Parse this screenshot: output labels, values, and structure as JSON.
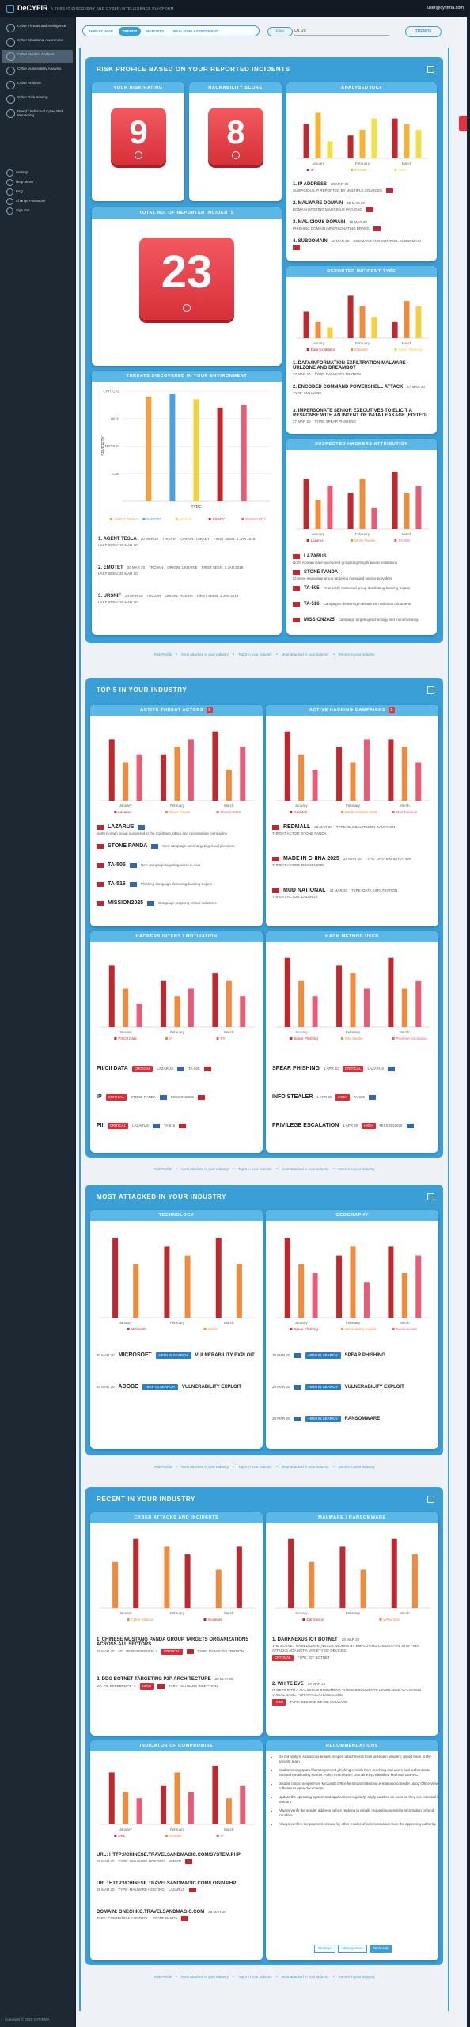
{
  "header": {
    "brand": "DeCYFIR",
    "tagline": "A THREAT DISCOVERY AND CYBER-INTELLIGENCE PLATFORM",
    "user": "user@cyfirma.com"
  },
  "sidebar": {
    "primary": [
      "Cyber Threats and Intelligence",
      "Cyber Situational Awareness",
      "Cyber Incident Analysis",
      "Cyber Vulnerability Analysis",
      "Cyber Analysis",
      "Cyber Risk Scoring",
      "Brand / Individual Cyber Risk Monitoring"
    ],
    "secondary": [
      "Settings",
      "Help Menu",
      "FAQ",
      "Change Password",
      "Sign Out"
    ]
  },
  "tabs": [
    "THREAT VIEW",
    "TRENDS",
    "REPORTS",
    "REAL-TIME ASSESSMENT"
  ],
  "toolbar": {
    "filter": "Filter",
    "period": "Q1 '20",
    "trends": "TRENDS"
  },
  "section_nav": [
    "Risk Profile",
    "Most attacked in your industry",
    "Top 5 in your industry",
    "Most attacked in your industry",
    "Recent in your industry"
  ],
  "risk": {
    "title": "RISK PROFILE BASED ON YOUR REPORTED INCIDENTS",
    "rating": {
      "label": "YOUR RISK RATING",
      "value": 9
    },
    "hackability": {
      "label": "HACKABILITY SCORE",
      "value": 8
    },
    "total": {
      "label": "TOTAL NO. OF REPORTED INCIDENTS",
      "value": 23
    },
    "iocs": {
      "title": "ANALYSED IOCs",
      "rows": [
        {
          "name": "1. IP ADDRESS",
          "date": "20 MAR 20",
          "detail": "SUSPICIOUS IP REPORTED BY MULTIPLE SOURCES"
        },
        {
          "name": "2. MALWARE DOMAIN",
          "date": "20 MAR 20",
          "detail": "DOMAIN HOSTING MALICIOUS PAYLOAD"
        },
        {
          "name": "3. MALICIOUS DOMAIN",
          "date": "18 MAR 20",
          "detail": "PHISHING DOMAIN IMPERSONATING BRAND"
        },
        {
          "name": "4. SUBDOMAIN",
          "date": "16 MAR 20",
          "detail": "COMMAND AND CONTROL SUBDOMAIN"
        }
      ]
    },
    "threats": {
      "title": "THREATS DISCOVERED IN YOUR ENVIRONMENT",
      "rows": [
        {
          "name": "1. AGENT TESLA",
          "date": "20 MAR 20",
          "kind": "TROJAN",
          "origin": "ORIGIN: TURKEY",
          "first": "FIRST SEEN: 1 JAN 2019",
          "last": "LAST SEEN: 20 MAR 20"
        },
        {
          "name": "2. EMOTET",
          "date": "20 MAR 20",
          "kind": "TROJAN",
          "origin": "ORIGIN: UKRAINE",
          "first": "FIRST SEEN: 1 JAN 2019",
          "last": "LAST SEEN: 20 MAR 20"
        },
        {
          "name": "3. URSNIF",
          "date": "20 MAR 20",
          "kind": "TROJAN",
          "origin": "ORIGIN: RUSSIA",
          "first": "FIRST SEEN: 1 JAN 2019",
          "last": "LAST SEEN: 20 MAR 20"
        }
      ]
    },
    "incident_types": {
      "title": "REPORTED INCIDENT TYPE",
      "rows": [
        {
          "name": "1. DATA/INFORMATION EXFILTRATION MALWARE - URLZONE AND DREAMBOT",
          "date": "27 MAR 20",
          "type": "TYPE: DATA EXFILTRATION"
        },
        {
          "name": "2. ENCODED COMMAND POWERSHELL ATTACK",
          "date": "27 MAR 20",
          "type": "TYPE: MALWARE"
        },
        {
          "name": "3. IMPERSONATE SENIOR EXECUTIVES TO ELICIT A RESPONSE WITH AN INTENT OF DATA LEAKAGE (EDITED)",
          "date": "27 MAR 20",
          "type": "TYPE: SPEAR PHISHING"
        }
      ]
    },
    "hackers": {
      "title": "SUSPECTED HACKERS ATTRIBUTION",
      "rows": [
        {
          "name": "LAZARUS",
          "detail": "North Korean state-sponsored group targeting financial institutions"
        },
        {
          "name": "STONE PANDA",
          "detail": "Chinese espionage group targeting managed service providers"
        },
        {
          "name": "TA-505",
          "detail": "Financially motivated group distributing banking trojans"
        },
        {
          "name": "TA-516",
          "detail": "Campaigns delivering malware via malicious documents"
        },
        {
          "name": "MISSION2025",
          "detail": "Campaign targeting technology and manufacturing"
        }
      ]
    }
  },
  "top5": {
    "title": "TOP 5 IN YOUR INDUSTRY",
    "actors": {
      "title": "ACTIVE THREAT ACTORS",
      "count": 5,
      "rows": [
        {
          "name": "LAZARUS",
          "detail": "North Korean group suspected in the Coinbase attack and ransomware campaigns"
        },
        {
          "name": "STONE PANDA",
          "detail": "New campaign seen targeting cloud providers"
        },
        {
          "name": "TA-505",
          "detail": "New campaign targeting users in Asia"
        },
        {
          "name": "TA-516",
          "detail": "Phishing campaign delivering banking trojans"
        },
        {
          "name": "MISSION2025",
          "detail": "Campaign targeting critical industries"
        }
      ]
    },
    "campaigns": {
      "title": "ACTIVE HACKING CAMPAIGNS",
      "count": 3,
      "rows": [
        {
          "name": "REDMALL",
          "date": "28 MAR 20",
          "type": "TYPE: GLOBAL RECON CAMPAIGN",
          "actor": "THREAT ACTOR: STONE PANDA"
        },
        {
          "name": "MADE IN CHINA 2025",
          "date": "28 MAR 20",
          "type": "TYPE: DATA EXFILTRATION",
          "actor": "THREAT ACTOR: MISSION2025"
        },
        {
          "name": "MUD NATIONAL",
          "date": "28 MAR 20",
          "type": "TYPE: DATA EXFILTRATION",
          "actor": "THREAT ACTOR: LAZARUS"
        }
      ]
    },
    "intent": {
      "title": "HACKERS INTENT / MOTIVATION",
      "rows": [
        {
          "name": "PII/CII DATA",
          "severity": "CRITICAL",
          "actor": "LAZARUS",
          "actor2": "TA-505"
        },
        {
          "name": "IP",
          "severity": "CRITICAL",
          "actor": "STONE PANDA",
          "actor2": "MISSION2025"
        },
        {
          "name": "PII",
          "severity": "CRITICAL",
          "actor": "LAZARUS",
          "actor2": "TA-516"
        }
      ]
    },
    "methods": {
      "title": "HACK METHOD USED",
      "rows": [
        {
          "name": "SPEAR PHISHING",
          "date": "1 APR 20",
          "severity": "CRITICAL",
          "actor": "LAZARUS"
        },
        {
          "name": "INFO STEALER",
          "date": "1 APR 20",
          "severity": "HIGH",
          "actor": "TA-505"
        },
        {
          "name": "PRIVILEGE ESCALATION",
          "date": "1 APR 20",
          "severity": "HIGH",
          "actor": "MISSION2025"
        }
      ]
    }
  },
  "most": {
    "title": "MOST ATTACKED IN YOUR INDUSTRY",
    "technology": {
      "title": "TECHNOLOGY",
      "rows": [
        {
          "date": "20 MAR 20",
          "name": "MICROSOFT",
          "tag": "HIGH IN SEARCH",
          "attack": "VULNERABILITY EXPLOIT"
        },
        {
          "date": "20 MAR 20",
          "name": "ADOBE",
          "tag": "HIGH IN SEARCH",
          "attack": "VULNERABILITY EXPLOIT"
        }
      ]
    },
    "geography": {
      "title": "GEOGRAPHY",
      "rows": [
        {
          "date": "20 MAR 20",
          "tag": "HIGH IN SEARCH",
          "attack": "SPEAR PHISHING"
        },
        {
          "date": "20 MAR 20",
          "tag": "HIGH IN SEARCH",
          "attack": "VULNERABILITY EXPLOIT"
        },
        {
          "date": "20 MAR 20",
          "tag": "HIGH IN SEARCH",
          "attack": "RANSOMWARE"
        }
      ]
    }
  },
  "recent": {
    "title": "RECENT IN YOUR INDUSTRY",
    "attacks": {
      "title": "CYBER ATTACKS AND INCIDENTS",
      "rows": [
        {
          "name": "1. CHINESE MUSTANG PANDA GROUP TARGETS ORGANIZATIONS ACROSS ALL SECTORS",
          "date": "28 MAR 20",
          "impact": "NO. OF REFERENCE: 4",
          "severity": "CRITICAL",
          "type": "TYPE: DATA EXFILTRATION"
        },
        {
          "name": "2. DDG BOTNET TARGETING P2P ARCHITECTURE",
          "date": "28 MAR 20",
          "impact": "NO. OF REFERENCE: 3",
          "severity": "HIGH",
          "type": "TYPE: MALWARE INFECTION"
        }
      ]
    },
    "malware": {
      "title": "MALWARE / RANSOMWARE",
      "rows": [
        {
          "name": "1. DARKNEXUS IOT BOTNET",
          "date": "28 MAR 20",
          "detail": "THE BOTNET NAMED DARK_NEXUS, WORKS BY EMPLOYING CREDENTIAL STUFFING ATTACKS AGAINST A VARIETY OF DEVICES",
          "severity": "CRITICAL",
          "type": "TYPE: IOT BOTNET"
        },
        {
          "name": "2. WHITE EVE",
          "date": "28 MAR 20",
          "detail": "IT GETS INTO A MALICIOUS DOCUMENT. THESE DOCUMENTS LEVERAGED MALICIOUS VISUAL BASIC FOR APPLICATIONS CODE",
          "severity": "HIGH",
          "type": "TYPE: SECOND STAGE MALWARE"
        }
      ]
    },
    "ioc": {
      "title": "INDICATOR OF COMPROMISE",
      "rows": [
        {
          "text": "URL: HTTP://CHINESE.TRAVELSANDMAGIC.COM/SYSTEM.PHP",
          "date": "28 MAR 20",
          "type": "TYPE: WALWARE HOSTING",
          "actor": "WINNTI"
        },
        {
          "text": "URL: HTTP://CHINESE.TRAVELSANDMAGIC.COM/LOGIN.PHP",
          "date": "28 MAR 20",
          "type": "TYPE: MALWARE HOSTING",
          "actor": "LAZARUS"
        },
        {
          "text": "DOMAIN: ONECHKC.TRAVELSANDMAGIC.COM",
          "date": "28 MAR 20",
          "type": "TYPE: COMMAND & CONTROL",
          "actor": "STONE PANDA"
        }
      ]
    },
    "recommendations": {
      "title": "RECOMMENDATIONS",
      "items": [
        "Do not reply to suspicious emails or open attachments from unknown senders; report them to the security team.",
        "Enable strong spam filters to prevent phishing e-mails from reaching end users and authenticate inbound email using Sender Policy Framework, DomainKeys Identified Mail and DMARC.",
        "Disable macro scripts from Microsoft Office files transmitted via e-mail and consider using Office Viewer software to open documents.",
        "Update the operating system and applications regularly; apply patches as soon as they are released by vendors.",
        "Always verify the sender address before replying to emails requesting sensitive information or fund transfers.",
        "Always confirm the payment release by other modes of communication from the approving authority."
      ],
      "tabs": [
        "Strategic",
        "Management",
        "Technical"
      ]
    }
  },
  "footer": "Copyright © 2020 CYFIRMA",
  "chart_data": [
    {
      "type": "bar",
      "categories": [
        "January",
        "February",
        "March"
      ],
      "ylim": [
        0,
        10
      ],
      "series": [
        {
          "name": "IP",
          "color": "#c0282f",
          "values": [
            6,
            4,
            7
          ]
        },
        {
          "name": "Domain",
          "color": "#f5b335",
          "values": [
            8,
            5,
            6
          ]
        },
        {
          "name": "Hash",
          "color": "#f2e04a",
          "values": [
            3,
            7,
            5
          ]
        }
      ]
    },
    {
      "type": "bar",
      "categories": [
        null
      ],
      "ylabel": "SEVERITY",
      "xlabel": "TYPE",
      "ylim": [
        0,
        4
      ],
      "yticks": [
        {
          "value": 1,
          "label": "LOW"
        },
        {
          "value": 2,
          "label": "MEDIUM"
        },
        {
          "value": 3,
          "label": "HIGH"
        },
        {
          "value": 4,
          "label": "CRITICAL"
        }
      ],
      "grid": true,
      "series": [
        {
          "name": "AGENT TESLA",
          "color": "#f5a03a",
          "values": [
            3.8
          ]
        },
        {
          "name": "EMOTET",
          "color": "#4aa3df",
          "values": [
            3.9
          ]
        },
        {
          "name": "URSNIF",
          "color": "#f2d23c",
          "values": [
            3.7
          ]
        },
        {
          "name": "LOCKY",
          "color": "#c0282f",
          "values": [
            3.4
          ]
        },
        {
          "name": "WANNACRY",
          "color": "#e85d75",
          "values": [
            3.5
          ]
        }
      ]
    },
    {
      "type": "bar",
      "categories": [
        "January",
        "February",
        "March"
      ],
      "ylim": [
        0,
        10
      ],
      "series": [
        {
          "name": "Data Exfiltration",
          "color": "#c0282f",
          "values": [
            5,
            8,
            3
          ]
        },
        {
          "name": "Malware",
          "color": "#f08a3c",
          "values": [
            3,
            6,
            7
          ]
        },
        {
          "name": "Spear Phishing",
          "color": "#f5d142",
          "values": [
            2,
            4,
            6
          ]
        }
      ]
    },
    {
      "type": "bar",
      "categories": [
        "January",
        "February",
        "March"
      ],
      "ylim": [
        0,
        10
      ],
      "series": [
        {
          "name": "Lazarus",
          "color": "#c0282f",
          "values": [
            7,
            5,
            8
          ]
        },
        {
          "name": "Stone Panda",
          "color": "#f08a3c",
          "values": [
            4,
            7,
            5
          ]
        },
        {
          "name": "TA-505",
          "color": "#e85d75",
          "values": [
            6,
            3,
            6
          ]
        }
      ]
    },
    {
      "type": "bar",
      "categories": [
        "January",
        "February",
        "March"
      ],
      "ylim": [
        0,
        10
      ],
      "series": [
        {
          "name": "Lazarus",
          "color": "#c0282f",
          "values": [
            8,
            6,
            9
          ]
        },
        {
          "name": "Stone Panda",
          "color": "#f08a3c",
          "values": [
            5,
            7,
            4
          ]
        },
        {
          "name": "Mission2025",
          "color": "#e85d75",
          "values": [
            6,
            8,
            7
          ]
        }
      ]
    },
    {
      "type": "bar",
      "categories": [
        "January",
        "February",
        "March"
      ],
      "ylim": [
        0,
        10
      ],
      "series": [
        {
          "name": "RedMall",
          "color": "#c0282f",
          "values": [
            9,
            7,
            8
          ]
        },
        {
          "name": "Made in China 2025",
          "color": "#f08a3c",
          "values": [
            6,
            5,
            7
          ]
        },
        {
          "name": "Mud National",
          "color": "#e85d75",
          "values": [
            4,
            8,
            5
          ]
        }
      ]
    },
    {
      "type": "bar",
      "categories": [
        "January",
        "February",
        "March"
      ],
      "ylim": [
        0,
        10
      ],
      "series": [
        {
          "name": "PII/CII Data",
          "color": "#c0282f",
          "values": [
            8,
            6,
            7
          ]
        },
        {
          "name": "IP",
          "color": "#f08a3c",
          "values": [
            5,
            4,
            6
          ]
        },
        {
          "name": "PII",
          "color": "#e85d75",
          "values": [
            3,
            5,
            4
          ]
        }
      ]
    },
    {
      "type": "bar",
      "categories": [
        "January",
        "February",
        "March"
      ],
      "ylim": [
        0,
        10
      ],
      "series": [
        {
          "name": "Spear Phishing",
          "color": "#c0282f",
          "values": [
            9,
            8,
            9
          ]
        },
        {
          "name": "Info Stealer",
          "color": "#f08a3c",
          "values": [
            6,
            7,
            5
          ]
        },
        {
          "name": "Privilege Escalation",
          "color": "#e85d75",
          "values": [
            4,
            5,
            6
          ]
        }
      ]
    },
    {
      "type": "bar",
      "categories": [
        "January",
        "February",
        "March"
      ],
      "ylim": [
        0,
        10
      ],
      "series": [
        {
          "name": "Microsoft",
          "color": "#c0282f",
          "values": [
            9,
            8,
            9
          ]
        },
        {
          "name": "Adobe",
          "color": "#f08a3c",
          "values": [
            6,
            7,
            6
          ]
        }
      ]
    },
    {
      "type": "bar",
      "categories": [
        "January",
        "February",
        "March"
      ],
      "ylim": [
        0,
        10
      ],
      "series": [
        {
          "name": "Spear Phishing",
          "color": "#c0282f",
          "values": [
            9,
            7,
            8
          ]
        },
        {
          "name": "Vulnerability Exploit",
          "color": "#f08a3c",
          "values": [
            6,
            8,
            5
          ]
        },
        {
          "name": "Ransomware",
          "color": "#e85d75",
          "values": [
            5,
            4,
            7
          ]
        }
      ]
    },
    {
      "type": "bar",
      "categories": [
        "January",
        "February",
        "March"
      ],
      "ylim": [
        0,
        10
      ],
      "series": [
        {
          "name": "Cyber Attacks",
          "color": "#f08a3c",
          "values": [
            6,
            8,
            5
          ]
        },
        {
          "name": "Incidents",
          "color": "#c0282f",
          "values": [
            9,
            7,
            8
          ]
        }
      ]
    },
    {
      "type": "bar",
      "categories": [
        "January",
        "February",
        "March"
      ],
      "ylim": [
        0,
        10
      ],
      "series": [
        {
          "name": "Darknexus",
          "color": "#c0282f",
          "values": [
            9,
            8,
            9
          ]
        },
        {
          "name": "White Eve",
          "color": "#f08a3c",
          "values": [
            6,
            5,
            7
          ]
        }
      ]
    },
    {
      "type": "bar",
      "categories": [
        "January",
        "February",
        "March"
      ],
      "ylim": [
        0,
        10
      ],
      "series": [
        {
          "name": "URL",
          "color": "#c0282f",
          "values": [
            8,
            6,
            9
          ]
        },
        {
          "name": "Domain",
          "color": "#f08a3c",
          "values": [
            5,
            8,
            4
          ]
        },
        {
          "name": "IP",
          "color": "#e85d75",
          "values": [
            4,
            5,
            6
          ]
        }
      ]
    }
  ]
}
